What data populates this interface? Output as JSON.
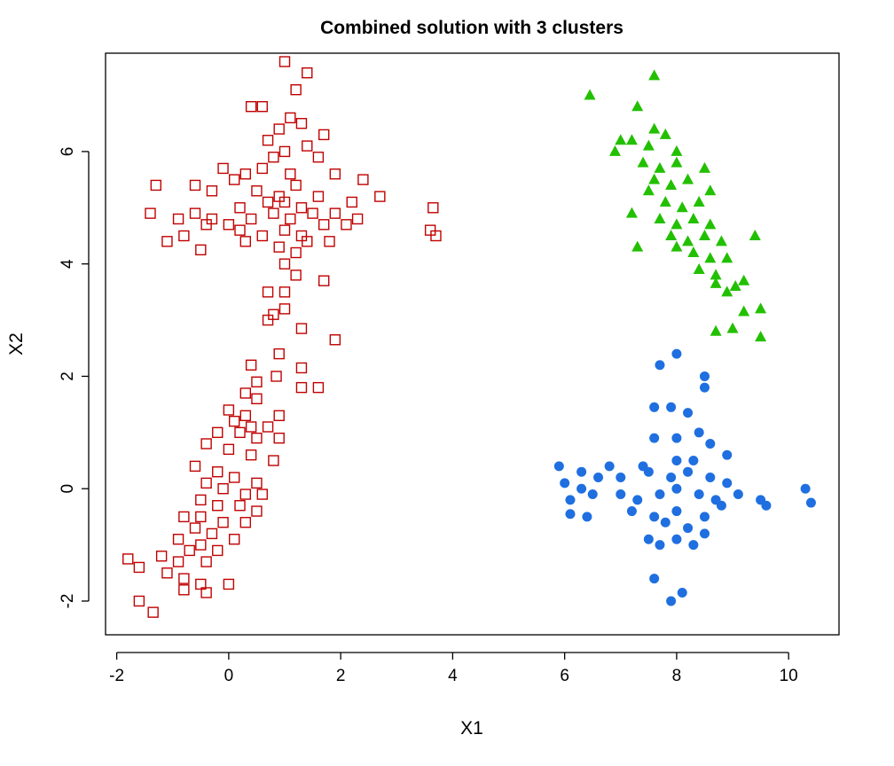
{
  "chart_data": {
    "type": "scatter",
    "title": "Combined solution with 3 clusters",
    "xlabel": "X1",
    "ylabel": "X2",
    "xlim": [
      -2.2,
      10.9
    ],
    "ylim": [
      -2.6,
      7.75
    ],
    "x_ticks": [
      -2,
      0,
      2,
      4,
      6,
      8,
      10
    ],
    "y_ticks": [
      -2,
      0,
      2,
      4,
      6
    ],
    "x_tick_labels": [
      "-2",
      "0",
      "2",
      "4",
      "6",
      "8",
      "10"
    ],
    "y_tick_labels": [
      "-2",
      "0",
      "2",
      "4",
      "6"
    ],
    "grid": false,
    "legend": "none",
    "series": [
      {
        "marker": "square-open",
        "color": "#c00000",
        "points": [
          [
            1.0,
            7.6
          ],
          [
            1.4,
            7.4
          ],
          [
            1.2,
            7.1
          ],
          [
            0.4,
            6.8
          ],
          [
            0.6,
            6.8
          ],
          [
            1.1,
            6.6
          ],
          [
            0.9,
            6.4
          ],
          [
            1.3,
            6.5
          ],
          [
            0.7,
            6.2
          ],
          [
            1.7,
            6.3
          ],
          [
            1.4,
            6.1
          ],
          [
            1.0,
            6.0
          ],
          [
            0.8,
            5.9
          ],
          [
            1.6,
            5.9
          ],
          [
            -0.1,
            5.7
          ],
          [
            0.3,
            5.6
          ],
          [
            0.6,
            5.7
          ],
          [
            1.1,
            5.6
          ],
          [
            1.9,
            5.6
          ],
          [
            2.4,
            5.5
          ],
          [
            -1.3,
            5.4
          ],
          [
            -0.6,
            5.4
          ],
          [
            0.1,
            5.5
          ],
          [
            0.5,
            5.3
          ],
          [
            1.2,
            5.4
          ],
          [
            0.9,
            5.2
          ],
          [
            -0.3,
            5.3
          ],
          [
            0.2,
            5.0
          ],
          [
            0.7,
            5.1
          ],
          [
            1.0,
            5.1
          ],
          [
            1.3,
            5.0
          ],
          [
            1.6,
            5.2
          ],
          [
            2.2,
            5.1
          ],
          [
            2.7,
            5.2
          ],
          [
            -1.4,
            4.9
          ],
          [
            -0.6,
            4.9
          ],
          [
            -0.3,
            4.8
          ],
          [
            0.0,
            4.7
          ],
          [
            0.4,
            4.8
          ],
          [
            0.8,
            4.9
          ],
          [
            1.1,
            4.8
          ],
          [
            1.5,
            4.9
          ],
          [
            1.9,
            4.9
          ],
          [
            2.3,
            4.8
          ],
          [
            -0.9,
            4.8
          ],
          [
            -0.4,
            4.7
          ],
          [
            0.2,
            4.6
          ],
          [
            0.6,
            4.5
          ],
          [
            1.0,
            4.6
          ],
          [
            1.3,
            4.5
          ],
          [
            1.7,
            4.7
          ],
          [
            2.1,
            4.7
          ],
          [
            -1.1,
            4.4
          ],
          [
            -0.8,
            4.5
          ],
          [
            0.3,
            4.4
          ],
          [
            0.9,
            4.3
          ],
          [
            1.4,
            4.4
          ],
          [
            1.8,
            4.4
          ],
          [
            -0.5,
            4.25
          ],
          [
            1.2,
            4.2
          ],
          [
            1.0,
            4.0
          ],
          [
            3.6,
            4.6
          ],
          [
            3.7,
            4.5
          ],
          [
            3.65,
            5.0
          ],
          [
            0.7,
            3.5
          ],
          [
            1.0,
            3.5
          ],
          [
            1.7,
            3.7
          ],
          [
            1.2,
            3.8
          ],
          [
            1.0,
            3.2
          ],
          [
            0.8,
            3.1
          ],
          [
            0.7,
            3.0
          ],
          [
            1.3,
            2.85
          ],
          [
            1.9,
            2.65
          ],
          [
            0.9,
            2.4
          ],
          [
            0.4,
            2.2
          ],
          [
            1.3,
            2.15
          ],
          [
            0.5,
            1.9
          ],
          [
            0.85,
            2.0
          ],
          [
            1.3,
            1.8
          ],
          [
            1.6,
            1.8
          ],
          [
            0.3,
            1.7
          ],
          [
            0.5,
            1.6
          ],
          [
            0.0,
            1.4
          ],
          [
            0.3,
            1.3
          ],
          [
            0.9,
            1.3
          ],
          [
            0.1,
            1.2
          ],
          [
            0.4,
            1.1
          ],
          [
            0.7,
            1.1
          ],
          [
            -0.2,
            1.0
          ],
          [
            0.2,
            1.0
          ],
          [
            0.5,
            0.9
          ],
          [
            0.9,
            0.9
          ],
          [
            -0.4,
            0.8
          ],
          [
            0.0,
            0.7
          ],
          [
            0.4,
            0.6
          ],
          [
            0.8,
            0.5
          ],
          [
            -0.6,
            0.4
          ],
          [
            -0.2,
            0.3
          ],
          [
            0.1,
            0.2
          ],
          [
            0.5,
            0.1
          ],
          [
            -0.4,
            0.1
          ],
          [
            -0.1,
            0.0
          ],
          [
            0.3,
            -0.1
          ],
          [
            0.6,
            -0.1
          ],
          [
            -0.5,
            -0.2
          ],
          [
            -0.2,
            -0.3
          ],
          [
            0.2,
            -0.3
          ],
          [
            0.5,
            -0.4
          ],
          [
            -0.8,
            -0.5
          ],
          [
            -0.5,
            -0.5
          ],
          [
            -0.1,
            -0.6
          ],
          [
            0.3,
            -0.6
          ],
          [
            -0.6,
            -0.7
          ],
          [
            -0.3,
            -0.8
          ],
          [
            0.1,
            -0.9
          ],
          [
            -0.9,
            -0.9
          ],
          [
            -0.5,
            -1.0
          ],
          [
            -0.2,
            -1.1
          ],
          [
            -0.7,
            -1.1
          ],
          [
            -1.2,
            -1.2
          ],
          [
            -0.9,
            -1.3
          ],
          [
            -0.4,
            -1.3
          ],
          [
            -1.8,
            -1.25
          ],
          [
            -1.6,
            -1.4
          ],
          [
            -1.1,
            -1.5
          ],
          [
            -0.8,
            -1.6
          ],
          [
            -0.5,
            -1.7
          ],
          [
            0.0,
            -1.7
          ],
          [
            -0.8,
            -1.8
          ],
          [
            -0.4,
            -1.85
          ],
          [
            -1.6,
            -2.0
          ],
          [
            -1.35,
            -2.2
          ]
        ]
      },
      {
        "marker": "triangle-filled",
        "color": "#22c000",
        "points": [
          [
            7.6,
            7.35
          ],
          [
            6.45,
            7.0
          ],
          [
            7.3,
            6.8
          ],
          [
            7.6,
            6.4
          ],
          [
            7.8,
            6.3
          ],
          [
            7.0,
            6.2
          ],
          [
            7.2,
            6.2
          ],
          [
            7.5,
            6.1
          ],
          [
            6.9,
            6.0
          ],
          [
            8.0,
            6.0
          ],
          [
            7.4,
            5.8
          ],
          [
            7.7,
            5.7
          ],
          [
            8.0,
            5.8
          ],
          [
            8.5,
            5.7
          ],
          [
            7.6,
            5.5
          ],
          [
            7.9,
            5.4
          ],
          [
            8.2,
            5.5
          ],
          [
            8.6,
            5.3
          ],
          [
            7.5,
            5.3
          ],
          [
            7.8,
            5.1
          ],
          [
            8.1,
            5.0
          ],
          [
            8.4,
            5.1
          ],
          [
            7.2,
            4.9
          ],
          [
            7.7,
            4.8
          ],
          [
            8.0,
            4.7
          ],
          [
            8.3,
            4.8
          ],
          [
            8.6,
            4.7
          ],
          [
            7.9,
            4.5
          ],
          [
            8.2,
            4.4
          ],
          [
            8.5,
            4.5
          ],
          [
            8.8,
            4.4
          ],
          [
            9.4,
            4.5
          ],
          [
            7.3,
            4.3
          ],
          [
            8.0,
            4.3
          ],
          [
            8.3,
            4.2
          ],
          [
            8.6,
            4.1
          ],
          [
            8.9,
            4.1
          ],
          [
            8.4,
            3.9
          ],
          [
            8.7,
            3.8
          ],
          [
            9.2,
            3.7
          ],
          [
            8.7,
            3.65
          ],
          [
            8.9,
            3.5
          ],
          [
            9.05,
            3.6
          ],
          [
            9.2,
            3.15
          ],
          [
            9.5,
            3.2
          ],
          [
            9.0,
            2.85
          ],
          [
            8.7,
            2.8
          ],
          [
            9.5,
            2.7
          ]
        ]
      },
      {
        "marker": "circle-filled",
        "color": "#1f6fe0",
        "points": [
          [
            8.0,
            2.4
          ],
          [
            7.7,
            2.2
          ],
          [
            8.5,
            2.0
          ],
          [
            8.5,
            1.8
          ],
          [
            7.6,
            1.45
          ],
          [
            7.9,
            1.45
          ],
          [
            8.2,
            1.35
          ],
          [
            7.6,
            0.9
          ],
          [
            8.0,
            0.9
          ],
          [
            8.4,
            1.0
          ],
          [
            8.6,
            0.8
          ],
          [
            8.9,
            0.6
          ],
          [
            5.9,
            0.4
          ],
          [
            6.3,
            0.3
          ],
          [
            6.8,
            0.4
          ],
          [
            7.4,
            0.4
          ],
          [
            8.0,
            0.5
          ],
          [
            8.3,
            0.5
          ],
          [
            6.0,
            0.1
          ],
          [
            6.3,
            0.0
          ],
          [
            6.6,
            0.2
          ],
          [
            7.0,
            0.2
          ],
          [
            7.5,
            0.3
          ],
          [
            7.9,
            0.2
          ],
          [
            8.2,
            0.3
          ],
          [
            8.6,
            0.2
          ],
          [
            8.9,
            0.1
          ],
          [
            6.1,
            -0.2
          ],
          [
            6.5,
            -0.1
          ],
          [
            7.0,
            -0.1
          ],
          [
            7.3,
            -0.2
          ],
          [
            7.7,
            -0.1
          ],
          [
            8.0,
            0.0
          ],
          [
            8.4,
            -0.1
          ],
          [
            8.7,
            -0.2
          ],
          [
            9.1,
            -0.1
          ],
          [
            9.5,
            -0.2
          ],
          [
            10.3,
            0.0
          ],
          [
            10.4,
            -0.25
          ],
          [
            9.6,
            -0.3
          ],
          [
            6.1,
            -0.45
          ],
          [
            6.4,
            -0.5
          ],
          [
            7.2,
            -0.4
          ],
          [
            7.6,
            -0.5
          ],
          [
            8.0,
            -0.4
          ],
          [
            8.5,
            -0.5
          ],
          [
            8.8,
            -0.3
          ],
          [
            7.8,
            -0.6
          ],
          [
            8.2,
            -0.7
          ],
          [
            8.5,
            -0.8
          ],
          [
            7.5,
            -0.9
          ],
          [
            8.0,
            -0.9
          ],
          [
            7.7,
            -1.0
          ],
          [
            8.3,
            -1.0
          ],
          [
            7.6,
            -1.6
          ],
          [
            8.1,
            -1.85
          ],
          [
            7.9,
            -2.0
          ]
        ]
      }
    ]
  }
}
